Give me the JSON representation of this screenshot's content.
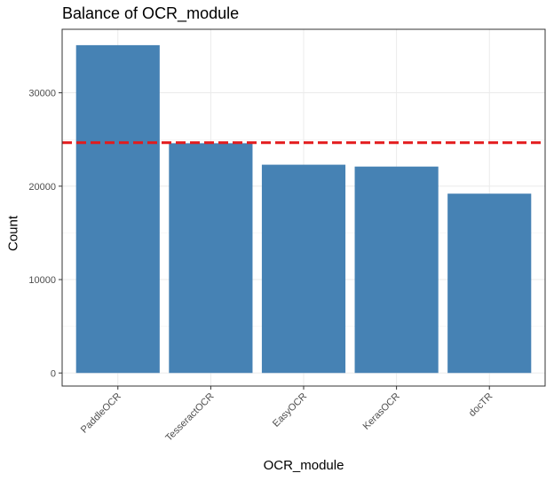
{
  "chart_data": {
    "type": "bar",
    "title": "Balance of OCR_module",
    "xlabel": "OCR_module",
    "ylabel": "Count",
    "categories": [
      "PaddleOCR",
      "TesseractOCR",
      "EasyOCR",
      "KerasOCR",
      "docTR"
    ],
    "values": [
      35100,
      24600,
      22300,
      22100,
      19200
    ],
    "reference_line": {
      "value": 24660,
      "style": "dashed",
      "color": "#e31a1c"
    },
    "ylim": [
      -1400,
      36800
    ],
    "yticks": [
      0,
      10000,
      20000,
      30000
    ],
    "ytick_labels": [
      "0",
      "10000",
      "20000",
      "30000"
    ],
    "grid": true,
    "legend": "none",
    "bar_color": "#4682b4"
  }
}
